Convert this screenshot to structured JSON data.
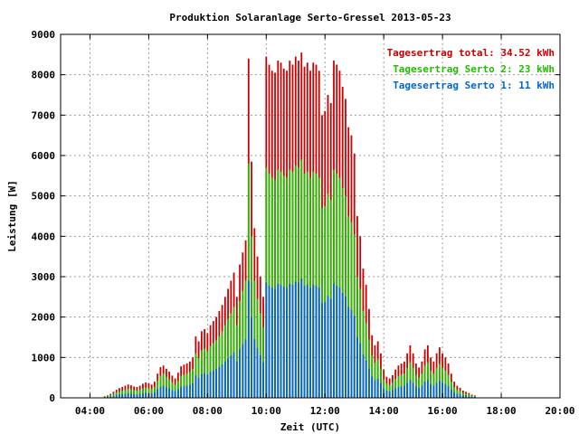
{
  "chart_data": {
    "type": "bar",
    "title": "Produktion Solaranlage Serto-Gressel 2013-05-23",
    "xlabel": "Zeit (UTC)",
    "ylabel": "Leistung [W]",
    "xlim": [
      3.0,
      20.0
    ],
    "ylim": [
      0,
      9000
    ],
    "grid": true,
    "legend_position": "top-right",
    "x_ticks": [
      4,
      6,
      8,
      10,
      12,
      14,
      16,
      18,
      20
    ],
    "x_tick_labels": [
      "04:00",
      "06:00",
      "08:00",
      "10:00",
      "12:00",
      "14:00",
      "16:00",
      "18:00",
      "20:00"
    ],
    "y_ticks": [
      0,
      1000,
      2000,
      3000,
      4000,
      5000,
      6000,
      7000,
      8000,
      9000
    ],
    "y_tick_labels": [
      "0",
      "1000",
      "2000",
      "3000",
      "4000",
      "5000",
      "6000",
      "7000",
      "8000",
      "9000"
    ],
    "legend": [
      {
        "text": "Tagesertrag total: 34.52 kWh",
        "color": "#cc0000"
      },
      {
        "text": "Tagesertrag Serto 2: 23 kWh",
        "color": "#22bb00"
      },
      {
        "text": "Tagesertrag Serto 1: 11 kWh",
        "color": "#0066cc"
      }
    ],
    "colors": {
      "total": "#cc0000",
      "serto2": "#22bb00",
      "serto1": "#0066cc"
    },
    "x_start": 4.5,
    "x_step": 0.1,
    "series": [
      {
        "name": "Tagesertrag total",
        "values": [
          40,
          60,
          100,
          150,
          200,
          240,
          270,
          300,
          330,
          310,
          280,
          270,
          300,
          350,
          380,
          360,
          330,
          400,
          600,
          760,
          800,
          720,
          650,
          550,
          480,
          620,
          780,
          820,
          850,
          900,
          1000,
          1520,
          1400,
          1650,
          1700,
          1600,
          1800,
          1900,
          2000,
          2150,
          2300,
          2500,
          2700,
          2900,
          3100,
          2500,
          3300,
          3600,
          3900,
          8400,
          5850,
          4200,
          3500,
          3000,
          2500,
          8450,
          8250,
          8100,
          8050,
          8350,
          8300,
          8150,
          8100,
          8350,
          8250,
          8450,
          8350,
          8550,
          8200,
          8300,
          8100,
          8300,
          8250,
          8100,
          7000,
          7100,
          7500,
          7300,
          8350,
          8250,
          8100,
          7700,
          7400,
          6700,
          6500,
          6050,
          4500,
          4000,
          3200,
          2800,
          2200,
          1550,
          1300,
          1400,
          1100,
          700,
          520,
          480,
          560,
          700,
          800,
          850,
          900,
          1100,
          1300,
          1100,
          850,
          750,
          900,
          1200,
          1300,
          1000,
          900,
          1100,
          1250,
          1100,
          1000,
          850,
          600,
          400,
          300,
          250,
          180,
          150,
          120,
          80,
          60
        ]
      },
      {
        "name": "Tagesertrag Serto 2",
        "values": [
          30,
          40,
          70,
          100,
          130,
          160,
          180,
          200,
          220,
          210,
          190,
          180,
          200,
          230,
          250,
          240,
          220,
          270,
          420,
          550,
          600,
          520,
          460,
          380,
          330,
          420,
          540,
          570,
          600,
          640,
          720,
          1100,
          980,
          1180,
          1220,
          1150,
          1280,
          1350,
          1430,
          1530,
          1650,
          1800,
          1950,
          2100,
          2250,
          1800,
          2400,
          2650,
          2900,
          5800,
          4000,
          2900,
          2450,
          2100,
          1750,
          5700,
          5550,
          5450,
          5400,
          5650,
          5600,
          5500,
          5450,
          5650,
          5600,
          5750,
          5700,
          5900,
          5550,
          5600,
          5450,
          5600,
          5550,
          5450,
          4700,
          4750,
          5050,
          4900,
          5650,
          5550,
          5450,
          5200,
          5000,
          4500,
          4350,
          4050,
          3000,
          2700,
          2150,
          1850,
          1450,
          1050,
          870,
          950,
          730,
          460,
          350,
          320,
          380,
          470,
          540,
          570,
          600,
          740,
          880,
          740,
          570,
          500,
          600,
          800,
          880,
          670,
          600,
          740,
          840,
          740,
          670,
          570,
          400,
          270,
          200,
          170,
          120,
          100,
          80,
          55,
          40
        ]
      },
      {
        "name": "Tagesertrag Serto 1",
        "values": [
          15,
          20,
          35,
          50,
          65,
          80,
          90,
          100,
          110,
          105,
          95,
          90,
          100,
          115,
          125,
          120,
          110,
          135,
          210,
          270,
          300,
          260,
          230,
          190,
          165,
          210,
          270,
          290,
          300,
          320,
          360,
          550,
          490,
          590,
          610,
          575,
          640,
          675,
          715,
          765,
          825,
          900,
          975,
          1050,
          1125,
          900,
          1200,
          1325,
          1450,
          2900,
          2000,
          1450,
          1225,
          1050,
          875,
          2850,
          2775,
          2725,
          2700,
          2825,
          2800,
          2750,
          2725,
          2825,
          2800,
          2875,
          2850,
          2950,
          2775,
          2800,
          2725,
          2800,
          2775,
          2725,
          2350,
          2375,
          2525,
          2450,
          2825,
          2775,
          2725,
          2600,
          2500,
          2250,
          2175,
          2025,
          1500,
          1350,
          1075,
          925,
          725,
          525,
          435,
          475,
          365,
          230,
          175,
          160,
          190,
          235,
          270,
          285,
          300,
          370,
          440,
          370,
          285,
          250,
          300,
          400,
          440,
          335,
          300,
          370,
          420,
          370,
          335,
          285,
          200,
          135,
          100,
          85,
          60,
          50,
          40,
          28,
          20
        ]
      }
    ]
  }
}
